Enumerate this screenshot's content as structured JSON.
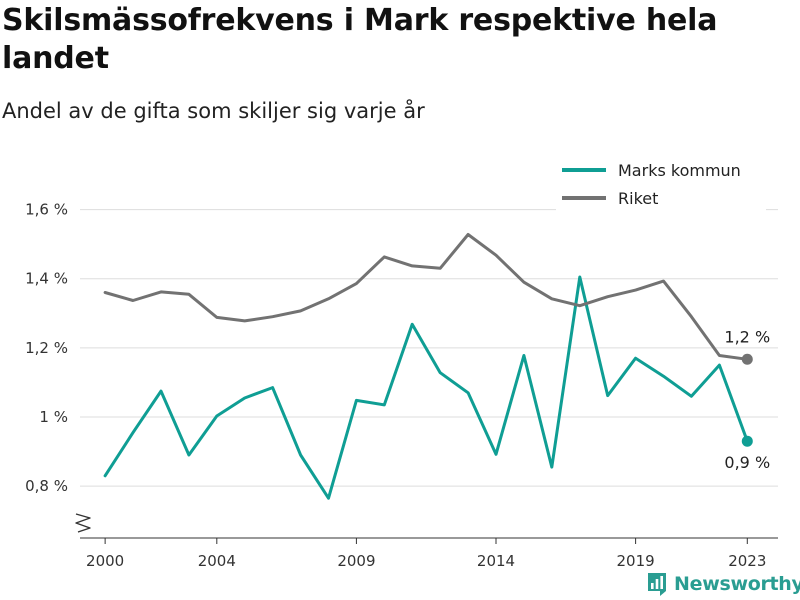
{
  "colors": {
    "accent": "#0f9e94",
    "national": "#727272",
    "grid": "#dddddd",
    "axis": "#333333",
    "brand": "#2a9d92"
  },
  "brand": {
    "name": "Newsworthy",
    "icon": "bar-chart-icon"
  },
  "chart_data": {
    "type": "line",
    "title": "Skilsmässofrekvens i Mark respektive hela landet",
    "subtitle": "Andel av de gifta som skiljer sig varje år",
    "xlabel": "",
    "ylabel": "",
    "x": [
      2000,
      2001,
      2002,
      2003,
      2004,
      2005,
      2006,
      2007,
      2008,
      2009,
      2010,
      2011,
      2012,
      2013,
      2014,
      2015,
      2016,
      2017,
      2018,
      2019,
      2020,
      2021,
      2022,
      2023
    ],
    "xticks": [
      2000,
      2004,
      2009,
      2014,
      2019,
      2023
    ],
    "xtick_labels": [
      "2000",
      "2004",
      "2009",
      "2014",
      "2019",
      "2023"
    ],
    "xlim": [
      1999.1,
      2024.1
    ],
    "ylim": [
      0.65,
      1.7
    ],
    "yticks": [
      0.8,
      1.0,
      1.2,
      1.4,
      1.6
    ],
    "ytick_labels": [
      "0,8 %",
      "1 %",
      "1,2 %",
      "1,4 %",
      "1,6 %"
    ],
    "y_axis_break": true,
    "grid": true,
    "legend_position": "top-right",
    "series": [
      {
        "name": "Marks kommun",
        "color": "#0f9e94",
        "values": [
          0.83,
          0.955,
          1.075,
          0.89,
          1.003,
          1.055,
          1.085,
          0.89,
          0.765,
          1.048,
          1.035,
          1.268,
          1.128,
          1.07,
          0.892,
          1.178,
          0.855,
          1.405,
          1.062,
          1.17,
          1.118,
          1.06,
          1.15,
          0.93
        ],
        "end_label": "0,9 %"
      },
      {
        "name": "Riket",
        "color": "#727272",
        "values": [
          1.36,
          1.337,
          1.362,
          1.355,
          1.288,
          1.278,
          1.29,
          1.307,
          1.342,
          1.386,
          1.463,
          1.437,
          1.43,
          1.528,
          1.468,
          1.39,
          1.342,
          1.322,
          1.348,
          1.367,
          1.393,
          1.29,
          1.178,
          1.167
        ],
        "end_label": "1,2 %"
      }
    ]
  }
}
